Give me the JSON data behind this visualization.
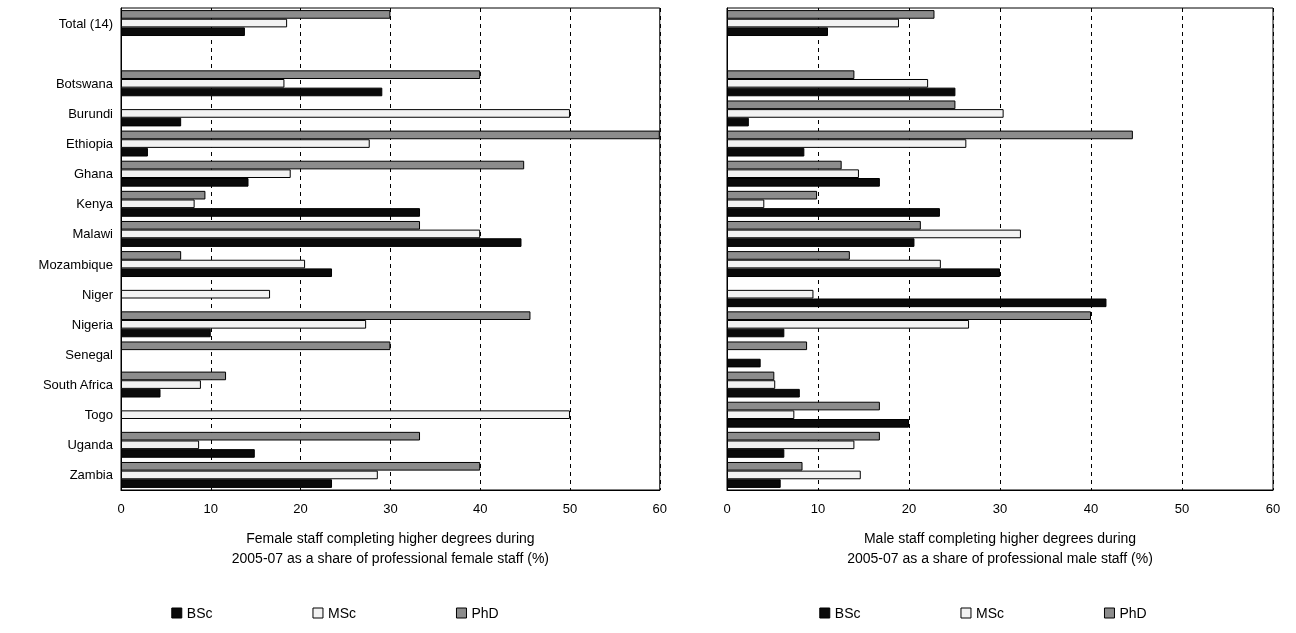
{
  "chart_data": [
    {
      "type": "bar",
      "orientation": "horizontal",
      "xlabel": "Female staff completing higher degrees during\n2005-07 as a share of professional female staff (%)",
      "categories": [
        "Total (14)",
        null,
        "Botswana",
        "Burundi",
        "Ethiopia",
        "Ghana",
        "Kenya",
        "Malawi",
        "Mozambique",
        "Niger",
        "Nigeria",
        "Senegal",
        "South Africa",
        "Togo",
        "Uganda",
        "Zambia"
      ],
      "series": [
        {
          "name": "BSc",
          "color": "#0a0a0a",
          "values": [
            13.8,
            null,
            29.1,
            6.7,
            3.0,
            14.2,
            33.3,
            44.6,
            23.5,
            null,
            10,
            null,
            4.4,
            null,
            14.9,
            23.5
          ]
        },
        {
          "name": "MSc",
          "color": "#f2f2f2",
          "values": [
            18.5,
            null,
            18.2,
            50,
            27.7,
            18.9,
            8.2,
            40,
            20.5,
            16.6,
            27.3,
            null,
            8.9,
            50,
            8.7,
            28.6
          ]
        },
        {
          "name": "PhD",
          "color": "#8c8c8c",
          "values": [
            30,
            null,
            40,
            null,
            60,
            44.9,
            9.4,
            33.3,
            6.7,
            null,
            45.6,
            30,
            11.7,
            null,
            33.3,
            40
          ]
        }
      ],
      "xlim": [
        0,
        60
      ],
      "xticks": [
        0,
        10,
        20,
        30,
        40,
        50,
        60
      ],
      "grid": "x",
      "legend": "bottom"
    },
    {
      "type": "bar",
      "orientation": "horizontal",
      "xlabel": "Male staff completing higher degrees during\n2005-07 as a share of professional male staff (%)",
      "categories": [
        null,
        null,
        null,
        null,
        null,
        null,
        null,
        null,
        null,
        null,
        null,
        null,
        null,
        null,
        null,
        null
      ],
      "series": [
        {
          "name": "BSc",
          "color": "#0a0a0a",
          "values": [
            11.1,
            null,
            25.1,
            2.4,
            8.5,
            16.8,
            23.4,
            20.6,
            30,
            41.7,
            6.3,
            3.7,
            8.0,
            20,
            6.3,
            5.9
          ]
        },
        {
          "name": "MSc",
          "color": "#f2f2f2",
          "values": [
            18.9,
            null,
            22.1,
            30.4,
            26.3,
            14.5,
            4.1,
            32.3,
            23.5,
            9.5,
            26.6,
            null,
            5.3,
            7.4,
            14.0,
            14.7
          ]
        },
        {
          "name": "PhD",
          "color": "#8c8c8c",
          "values": [
            22.8,
            null,
            14.0,
            25.1,
            44.6,
            12.6,
            9.9,
            21.3,
            13.5,
            null,
            40,
            8.8,
            5.2,
            16.8,
            16.8,
            8.3
          ]
        }
      ],
      "xlim": [
        0,
        60
      ],
      "xticks": [
        0,
        10,
        20,
        30,
        40,
        50,
        60
      ],
      "grid": "x",
      "legend": "bottom"
    }
  ]
}
